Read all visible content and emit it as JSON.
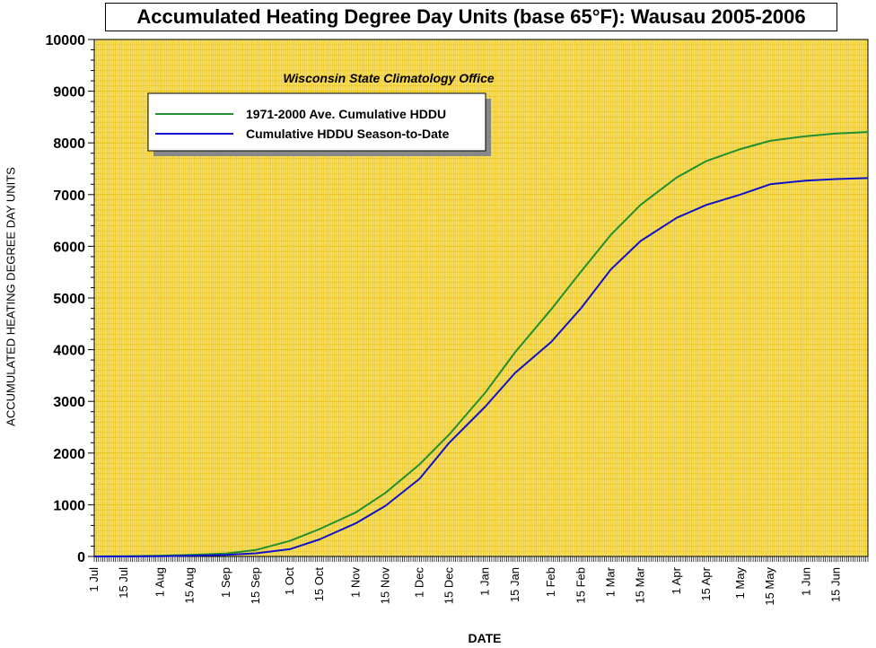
{
  "chart_data": {
    "type": "line",
    "title": "Accumulated Heating Degree Day Units (base 65°F): Wausau 2005-2006",
    "subtitle": "Wisconsin State Climatology Office",
    "xlabel": "DATE",
    "ylabel": "ACCUMULATED HEATING DEGREE DAY UNITS",
    "x_ticks": [
      "1 Jul",
      "15 Jul",
      "1 Aug",
      "15 Aug",
      "1 Sep",
      "15 Sep",
      "1 Oct",
      "15 Oct",
      "1 Nov",
      "15 Nov",
      "1 Dec",
      "15 Dec",
      "1 Jan",
      "15 Jan",
      "1 Feb",
      "15 Feb",
      "1 Mar",
      "15 Mar",
      "1 Apr",
      "15 Apr",
      "1 May",
      "15 May",
      "1 Jun",
      "15 Jun"
    ],
    "y_ticks": [
      0,
      1000,
      2000,
      3000,
      4000,
      5000,
      6000,
      7000,
      8000,
      9000,
      10000
    ],
    "ylim": [
      0,
      10000
    ],
    "grid": true,
    "legend_position": "top-left",
    "background_color": "#f7df6a",
    "grid_color": "#e8c21a",
    "series": [
      {
        "name": "1971-2000 Ave. Cumulative HDDU",
        "color": "#1f8f2f",
        "points": [
          [
            "1 Jul",
            0
          ],
          [
            "15 Jul",
            5
          ],
          [
            "1 Aug",
            15
          ],
          [
            "15 Aug",
            30
          ],
          [
            "1 Sep",
            55
          ],
          [
            "15 Sep",
            125
          ],
          [
            "1 Oct",
            300
          ],
          [
            "15 Oct",
            530
          ],
          [
            "1 Nov",
            850
          ],
          [
            "15 Nov",
            1230
          ],
          [
            "1 Dec",
            1780
          ],
          [
            "15 Dec",
            2360
          ],
          [
            "1 Jan",
            3170
          ],
          [
            "15 Jan",
            3950
          ],
          [
            "1 Feb",
            4780
          ],
          [
            "15 Feb",
            5510
          ],
          [
            "1 Mar",
            6220
          ],
          [
            "15 Mar",
            6800
          ],
          [
            "1 Apr",
            7330
          ],
          [
            "15 Apr",
            7650
          ],
          [
            "1 May",
            7880
          ],
          [
            "15 May",
            8040
          ],
          [
            "1 Jun",
            8130
          ],
          [
            "15 Jun",
            8180
          ],
          [
            "30 Jun",
            8210
          ]
        ]
      },
      {
        "name": "Cumulative HDDU Season-to-Date",
        "color": "#1010cc",
        "points": [
          [
            "1 Jul",
            0
          ],
          [
            "15 Jul",
            0
          ],
          [
            "1 Aug",
            5
          ],
          [
            "15 Aug",
            15
          ],
          [
            "1 Sep",
            30
          ],
          [
            "15 Sep",
            60
          ],
          [
            "1 Oct",
            140
          ],
          [
            "15 Oct",
            330
          ],
          [
            "1 Nov",
            640
          ],
          [
            "15 Nov",
            980
          ],
          [
            "1 Dec",
            1500
          ],
          [
            "15 Dec",
            2200
          ],
          [
            "1 Jan",
            2900
          ],
          [
            "15 Jan",
            3550
          ],
          [
            "1 Feb",
            4150
          ],
          [
            "15 Feb",
            4800
          ],
          [
            "1 Mar",
            5550
          ],
          [
            "15 Mar",
            6100
          ],
          [
            "1 Apr",
            6550
          ],
          [
            "15 Apr",
            6800
          ],
          [
            "1 May",
            7000
          ],
          [
            "15 May",
            7200
          ],
          [
            "1 Jun",
            7270
          ],
          [
            "15 Jun",
            7300
          ],
          [
            "30 Jun",
            7320
          ]
        ]
      }
    ]
  }
}
